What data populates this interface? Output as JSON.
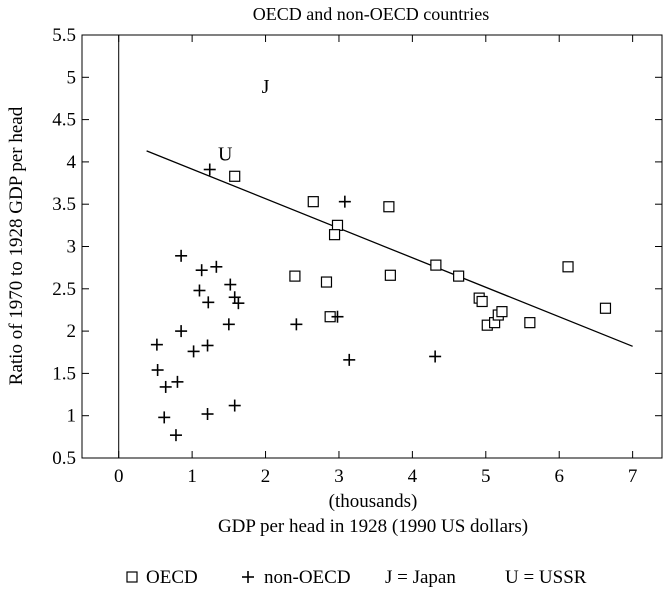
{
  "chart_data": {
    "type": "scatter",
    "title": "OECD and non-OECD countries",
    "xlabel_line1": "(thousands)",
    "xlabel_line2": "GDP per head in 1928 (1990 US dollars)",
    "ylabel": "Ratio of 1970 to 1928 GDP per head",
    "xlim": [
      -0.5,
      7.4
    ],
    "ylim": [
      0.5,
      5.5
    ],
    "x_ticks": [
      0,
      1,
      2,
      3,
      4,
      5,
      6,
      7
    ],
    "y_ticks": [
      0.5,
      1,
      1.5,
      2,
      2.5,
      3,
      3.5,
      4,
      4.5,
      5,
      5.5
    ],
    "x_tick_labels": [
      "0",
      "1",
      "2",
      "3",
      "4",
      "5",
      "6",
      "7"
    ],
    "y_tick_labels": [
      "0.5",
      "1",
      "1.5",
      "2",
      "2.5",
      "3",
      "3.5",
      "4",
      "4.5",
      "5",
      "5.5"
    ],
    "grid": false,
    "legend_position": "bottom",
    "series": [
      {
        "name": "OECD",
        "marker": "square",
        "points": [
          [
            1.58,
            3.83
          ],
          [
            2.65,
            3.53
          ],
          [
            2.98,
            3.25
          ],
          [
            2.94,
            3.14
          ],
          [
            3.68,
            3.47
          ],
          [
            2.4,
            2.65
          ],
          [
            2.83,
            2.58
          ],
          [
            2.88,
            2.17
          ],
          [
            3.7,
            2.66
          ],
          [
            4.32,
            2.78
          ],
          [
            4.63,
            2.65
          ],
          [
            4.91,
            2.39
          ],
          [
            4.95,
            2.35
          ],
          [
            5.02,
            2.07
          ],
          [
            5.12,
            2.1
          ],
          [
            5.17,
            2.19
          ],
          [
            5.22,
            2.23
          ],
          [
            5.6,
            2.1
          ],
          [
            6.12,
            2.76
          ],
          [
            6.63,
            2.27
          ]
        ]
      },
      {
        "name": "non-OECD",
        "marker": "plus",
        "points": [
          [
            1.24,
            3.91
          ],
          [
            0.85,
            2.89
          ],
          [
            1.13,
            2.72
          ],
          [
            1.33,
            2.76
          ],
          [
            1.1,
            2.48
          ],
          [
            1.52,
            2.55
          ],
          [
            1.58,
            2.4
          ],
          [
            1.63,
            2.33
          ],
          [
            1.22,
            2.34
          ],
          [
            1.5,
            2.08
          ],
          [
            0.85,
            2.0
          ],
          [
            1.21,
            1.83
          ],
          [
            1.02,
            1.76
          ],
          [
            0.52,
            1.84
          ],
          [
            0.53,
            1.54
          ],
          [
            0.64,
            1.34
          ],
          [
            0.8,
            1.4
          ],
          [
            0.62,
            0.98
          ],
          [
            0.78,
            0.77
          ],
          [
            1.21,
            1.02
          ],
          [
            1.58,
            1.12
          ],
          [
            2.42,
            2.08
          ],
          [
            2.98,
            2.17
          ],
          [
            3.08,
            3.53
          ],
          [
            3.14,
            1.66
          ],
          [
            4.31,
            1.7
          ]
        ]
      }
    ],
    "annotations": [
      {
        "text": "J",
        "x": 2.0,
        "y": 4.9
      },
      {
        "text": "U",
        "x": 1.45,
        "y": 4.1
      }
    ],
    "trendline": {
      "x1": 0.38,
      "y1": 4.13,
      "x2": 7.0,
      "y2": 1.82
    }
  },
  "legend": {
    "oecd_label": "OECD",
    "non_oecd_label": "non-OECD",
    "japan_label": "J = Japan",
    "ussr_label": "U = USSR"
  }
}
